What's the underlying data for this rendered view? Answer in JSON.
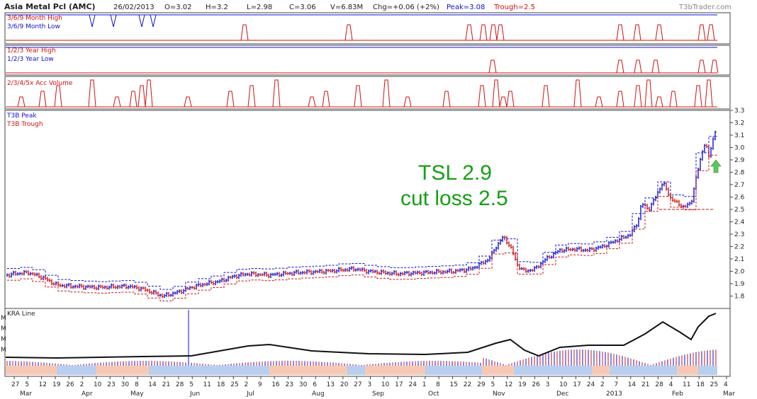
{
  "header": {
    "title": "Asia Metal Pcl (AMC)",
    "date": "26/02/2013",
    "open": "O=3.02",
    "high": "H=3.2",
    "low": "L=2.98",
    "close": "C=3.06",
    "volume": "V=6.83M",
    "change": "Chg=+0.06 (+2%)",
    "peak": "Peak=3.08",
    "trough": "Trough=2.5",
    "brand": "T3bTrader.com"
  },
  "panels": {
    "p1": {
      "label_a": "3/6/9 Month High",
      "label_b": "3/6/9 Month Low"
    },
    "p2": {
      "label_a": "1/2/3 Year High",
      "label_b": "1/2/3 Year Low"
    },
    "p3": {
      "label_a": "2/3/4/5x Acc Volume"
    },
    "price": {
      "label_a": "T3B Peak",
      "label_b": "T3B Trough"
    },
    "kra": {
      "label_a": "KRA Line",
      "axis_mark": "M"
    }
  },
  "annotation": {
    "line1": "TSL 2.9",
    "line2": "cut loss 2.5"
  },
  "colors": {
    "up": "#1010d0",
    "down": "#d01010",
    "note": "#14a014",
    "arrow": "#5cc85c"
  },
  "chart_data": {
    "type": "ohlc",
    "y_ticks": [
      1.8,
      1.9,
      2.0,
      2.1,
      2.2,
      2.3,
      2.4,
      2.5,
      2.6,
      2.7,
      2.8,
      2.9,
      3.0,
      3.1,
      3.2,
      3.3
    ],
    "ylim": [
      1.7,
      3.3
    ],
    "x_day_labels": [
      "27",
      "5",
      "12",
      "19",
      "26",
      "2",
      "10",
      "23",
      "30",
      "8",
      "14",
      "21",
      "28",
      "5",
      "11",
      "18",
      "25",
      "2",
      "9",
      "16",
      "23",
      "30",
      "6",
      "13",
      "20",
      "27",
      "3",
      "10",
      "17",
      "24",
      "1",
      "8",
      "15",
      "22",
      "29",
      "5",
      "12",
      "19",
      "26",
      "3",
      "10",
      "17",
      "24",
      "2",
      "7",
      "14",
      "21",
      "28",
      "4",
      "11",
      "18",
      "25",
      "4"
    ],
    "x_month_labels": [
      "Mar",
      "Apr",
      "May",
      "Jun",
      "Jul",
      "Aug",
      "Sep",
      "Oct",
      "Nov",
      "Dec",
      "2013",
      "Feb",
      "Mar"
    ],
    "price_path": [
      [
        0,
        1.96
      ],
      [
        20,
        1.98
      ],
      [
        40,
        1.99
      ],
      [
        60,
        1.95
      ],
      [
        80,
        1.89
      ],
      [
        100,
        1.88
      ],
      [
        140,
        1.87
      ],
      [
        180,
        1.88
      ],
      [
        200,
        1.86
      ],
      [
        215,
        1.83
      ],
      [
        230,
        1.8
      ],
      [
        250,
        1.83
      ],
      [
        270,
        1.87
      ],
      [
        290,
        1.9
      ],
      [
        310,
        1.92
      ],
      [
        330,
        1.96
      ],
      [
        350,
        1.98
      ],
      [
        380,
        1.97
      ],
      [
        420,
        1.99
      ],
      [
        460,
        2.0
      ],
      [
        500,
        2.02
      ],
      [
        520,
        2.0
      ],
      [
        560,
        1.98
      ],
      [
        600,
        1.99
      ],
      [
        640,
        2.0
      ],
      [
        665,
        2.02
      ],
      [
        675,
        2.05
      ],
      [
        690,
        2.1
      ],
      [
        700,
        2.2
      ],
      [
        710,
        2.28
      ],
      [
        720,
        2.2
      ],
      [
        730,
        2.05
      ],
      [
        740,
        2.0
      ],
      [
        755,
        2.02
      ],
      [
        770,
        2.1
      ],
      [
        790,
        2.17
      ],
      [
        810,
        2.18
      ],
      [
        830,
        2.17
      ],
      [
        850,
        2.2
      ],
      [
        870,
        2.25
      ],
      [
        890,
        2.3
      ],
      [
        900,
        2.4
      ],
      [
        905,
        2.55
      ],
      [
        915,
        2.5
      ],
      [
        925,
        2.6
      ],
      [
        935,
        2.72
      ],
      [
        945,
        2.6
      ],
      [
        955,
        2.55
      ],
      [
        965,
        2.52
      ],
      [
        975,
        2.55
      ],
      [
        980,
        2.7
      ],
      [
        990,
        2.95
      ],
      [
        995,
        3.05
      ],
      [
        1000,
        2.92
      ],
      [
        1005,
        3.05
      ],
      [
        1010,
        3.15
      ]
    ],
    "trough_level": 2.5,
    "tsl_level": 2.9
  }
}
